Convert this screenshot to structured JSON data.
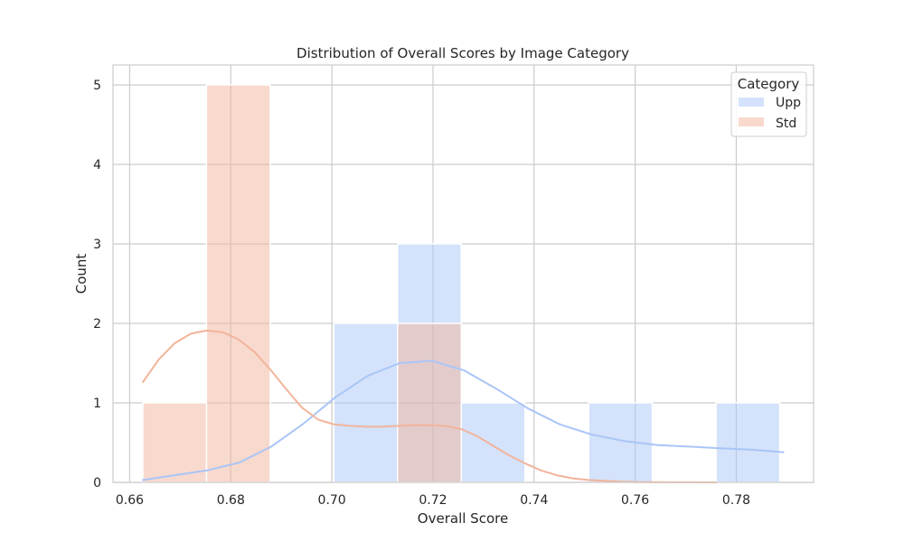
{
  "chart_data": {
    "type": "histogram",
    "title": "Distribution of Overall Scores by Image Category",
    "xlabel": "Overall Score",
    "ylabel": "Count",
    "xlim": [
      0.6567,
      0.7953
    ],
    "ylim": [
      0,
      5.25
    ],
    "xticks": [
      0.66,
      0.68,
      0.7,
      0.72,
      0.74,
      0.76,
      0.78
    ],
    "xtick_labels": [
      "0.66",
      "0.68",
      "0.70",
      "0.72",
      "0.74",
      "0.76",
      "0.78"
    ],
    "yticks": [
      0,
      1,
      2,
      3,
      4,
      5
    ],
    "ytick_labels": [
      "0",
      "1",
      "2",
      "3",
      "4",
      "5"
    ],
    "bin_edges": [
      0.6626,
      0.6752,
      0.6878,
      0.7004,
      0.713,
      0.7256,
      0.7382,
      0.7508,
      0.7634,
      0.776,
      0.7886
    ],
    "grid": true,
    "legend": {
      "title": "Category",
      "position": "top-right"
    },
    "series": [
      {
        "name": "Upp",
        "color": "#a9c5f7",
        "fill": "#d3defa",
        "counts": [
          0,
          0,
          0,
          2,
          3,
          1,
          0,
          1,
          0,
          1
        ],
        "kde": {
          "x": [
            0.6626,
            0.6753,
            0.6817,
            0.688,
            0.6944,
            0.7007,
            0.7071,
            0.7134,
            0.7198,
            0.7261,
            0.7325,
            0.7388,
            0.7451,
            0.7515,
            0.7578,
            0.7642,
            0.7705,
            0.7769,
            0.7832,
            0.7893
          ],
          "y": [
            0.03,
            0.15,
            0.25,
            0.45,
            0.74,
            1.07,
            1.34,
            1.5,
            1.53,
            1.41,
            1.18,
            0.93,
            0.73,
            0.6,
            0.52,
            0.47,
            0.45,
            0.43,
            0.41,
            0.38
          ]
        }
      },
      {
        "name": "Std",
        "color": "#f2b49b",
        "fill": "#f8d6c8",
        "counts": [
          1,
          5,
          0,
          0,
          2,
          0,
          0,
          0,
          0,
          0
        ],
        "kde": {
          "x": [
            0.6626,
            0.6658,
            0.6689,
            0.6721,
            0.6752,
            0.6784,
            0.6815,
            0.6847,
            0.6878,
            0.691,
            0.6941,
            0.6973,
            0.7004,
            0.7036,
            0.7067,
            0.7099,
            0.713,
            0.7162,
            0.7193,
            0.7225,
            0.7256,
            0.7288,
            0.7319,
            0.7351,
            0.7382,
            0.7414,
            0.7445,
            0.7477,
            0.7508,
            0.754,
            0.7571,
            0.7603,
            0.7634,
            0.7697,
            0.776
          ],
          "y": [
            1.26,
            1.55,
            1.75,
            1.87,
            1.91,
            1.89,
            1.8,
            1.64,
            1.42,
            1.17,
            0.94,
            0.79,
            0.73,
            0.71,
            0.7,
            0.7,
            0.71,
            0.72,
            0.72,
            0.71,
            0.67,
            0.58,
            0.46,
            0.34,
            0.24,
            0.15,
            0.09,
            0.05,
            0.03,
            0.02,
            0.01,
            0.005,
            0.003,
            0.001,
            0.0
          ]
        }
      }
    ]
  }
}
